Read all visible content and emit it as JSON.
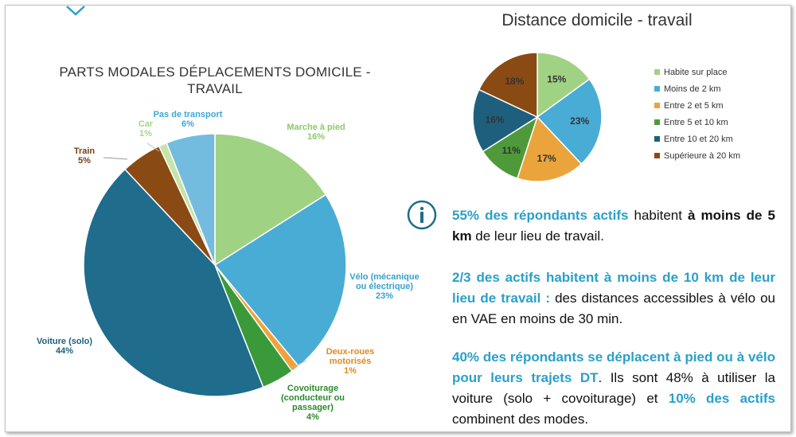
{
  "chart_data": [
    {
      "type": "pie",
      "title": "PARTS MODALES DÉPLACEMENTS DOMICILE - TRAVAIL",
      "slices": [
        {
          "label": "Marche à pied",
          "value": 16,
          "pct": "16%",
          "color": "#a0d283"
        },
        {
          "label": "Vélo (mécanique ou électrique)",
          "value": 23,
          "pct": "23%",
          "color": "#49acd4"
        },
        {
          "label": "Deux-roues motorisés",
          "value": 1,
          "pct": "1%",
          "color": "#f0a23a"
        },
        {
          "label": "Covoiturage (conducteur ou passager)",
          "value": 4,
          "pct": "4%",
          "color": "#3a9a3a"
        },
        {
          "label": "Voiture (solo)",
          "value": 44,
          "pct": "44%",
          "color": "#1f6c8c"
        },
        {
          "label": "Train",
          "value": 5,
          "pct": "5%",
          "color": "#8a4a14"
        },
        {
          "label": "Car",
          "value": 1,
          "pct": "1%",
          "color": "#c8e3a7"
        },
        {
          "label": "Pas de transport",
          "value": 6,
          "pct": "6%",
          "color": "#74bcdf"
        }
      ]
    },
    {
      "type": "pie",
      "title": "Distance domicile - travail",
      "legend": "right",
      "slices": [
        {
          "label": "Habite sur place",
          "value": 15,
          "pct": "15%",
          "color": "#a0d283"
        },
        {
          "label": "Moins de 2 km",
          "value": 23,
          "pct": "23%",
          "color": "#49acd4"
        },
        {
          "label": "Entre 2 et 5 km",
          "value": 17,
          "pct": "17%",
          "color": "#eba43c"
        },
        {
          "label": "Entre 5 et 10 km",
          "value": 11,
          "pct": "11%",
          "color": "#4e9a3a"
        },
        {
          "label": "Entre 10 et 20 km",
          "value": 16,
          "pct": "16%",
          "color": "#1f5f7e"
        },
        {
          "label": "Supérieure à 20 km",
          "value": 18,
          "pct": "18%",
          "color": "#8a4a14"
        }
      ]
    }
  ],
  "info": {
    "p1": {
      "a": "55% des répondants actifs",
      "b": " habitent ",
      "c": "à moins de 5 km",
      "d": " de leur lieu de travail."
    },
    "p2": {
      "a": "2/3 des actifs habitent à moins de 10 km de leur lieu de travail :",
      "b": " des distances accessibles à vélo ou en VAE en moins de 30 min."
    },
    "p3": {
      "a": "40% des répondants se déplacent à pied ou à vélo pour leurs trajets DT",
      "b": ". Ils sont 48% à utiliser la voiture (solo + covoiturage) et ",
      "c": "10% des actifs",
      "d": " combinent des modes."
    }
  },
  "colors": {
    "accent": "#2aa0c9",
    "chevron": "#2aa0c9"
  }
}
